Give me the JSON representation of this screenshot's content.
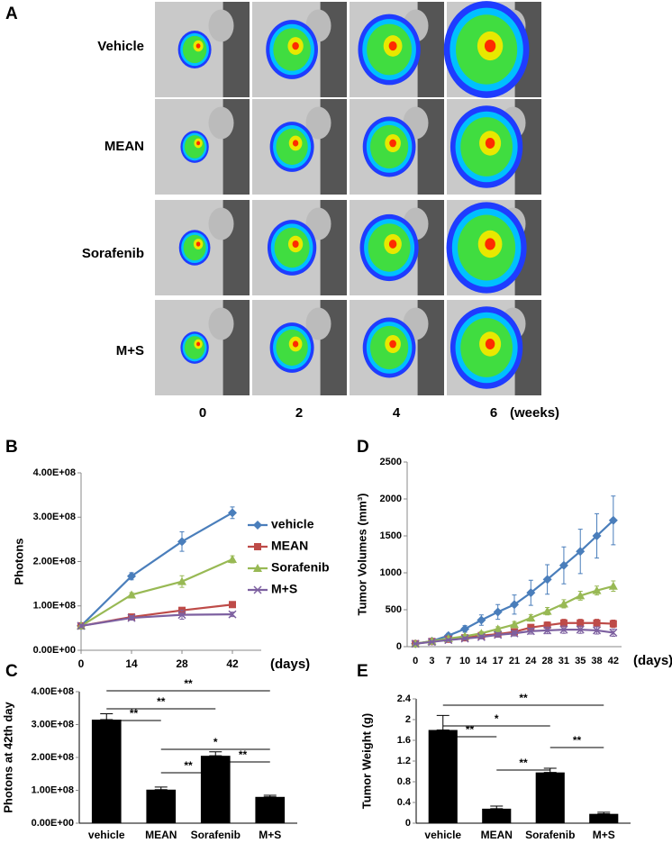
{
  "panel_a": {
    "label": "A",
    "rows": [
      "Vehicle",
      "MEAN",
      "Sorafenib",
      "M+S"
    ],
    "columns": [
      "0",
      "2",
      "4",
      "6"
    ],
    "unit": "(weeks)"
  },
  "chart_data": [
    {
      "type": "line",
      "panel": "B",
      "ylabel": "Photons",
      "xlabel": "(days)",
      "x": [
        0,
        14,
        28,
        42
      ],
      "xlim": [
        0,
        50
      ],
      "xticks": [
        0,
        14,
        28,
        42
      ],
      "ylim": [
        0,
        400000000
      ],
      "yticks": [
        {
          "value": 0,
          "label": "0.00E+00"
        },
        {
          "value": 100000000,
          "label": "1.00E+08"
        },
        {
          "value": 200000000,
          "label": "2.00E+08"
        },
        {
          "value": 300000000,
          "label": "3.00E+08"
        },
        {
          "value": 400000000,
          "label": "4.00E+08"
        }
      ],
      "legend": "right",
      "series": [
        {
          "name": "vehicle",
          "color": "#4a7ebb",
          "marker": "diamond",
          "values": [
            55000000,
            167000000,
            245000000,
            310000000
          ],
          "errors": [
            4000000,
            8000000,
            22000000,
            13000000
          ]
        },
        {
          "name": "MEAN",
          "color": "#be4b48",
          "marker": "square",
          "values": [
            55000000,
            75000000,
            90000000,
            103000000
          ],
          "errors": [
            4000000,
            5000000,
            5000000,
            5000000
          ]
        },
        {
          "name": "Sorafenib",
          "color": "#98b954",
          "marker": "triangle",
          "values": [
            55000000,
            125000000,
            155000000,
            205000000
          ],
          "errors": [
            4000000,
            5000000,
            13000000,
            8000000
          ]
        },
        {
          "name": "M+S",
          "color": "#7d60a0",
          "marker": "x",
          "values": [
            55000000,
            73000000,
            80000000,
            81000000
          ],
          "errors": [
            4000000,
            5000000,
            10000000,
            5000000
          ]
        }
      ]
    },
    {
      "type": "line",
      "panel": "D",
      "ylabel": "Tumor Volumes (mm³)",
      "xlabel": "(days)",
      "categories": [
        "0",
        "3",
        "7",
        "10",
        "14",
        "17",
        "21",
        "24",
        "28",
        "31",
        "35",
        "38",
        "42"
      ],
      "ylim": [
        0,
        2500
      ],
      "yticks": [
        0,
        500,
        1000,
        1500,
        2000,
        2500
      ],
      "series": [
        {
          "name": "vehicle",
          "color": "#4a7ebb",
          "marker": "diamond",
          "values": [
            40,
            75,
            150,
            240,
            360,
            470,
            570,
            730,
            910,
            1100,
            1290,
            1500,
            1710
          ],
          "errors": [
            10,
            15,
            30,
            45,
            70,
            100,
            130,
            170,
            200,
            250,
            300,
            300,
            330
          ]
        },
        {
          "name": "MEAN",
          "color": "#be4b48",
          "marker": "square",
          "values": [
            40,
            70,
            100,
            120,
            150,
            170,
            200,
            260,
            290,
            320,
            320,
            320,
            310
          ],
          "errors": [
            5,
            10,
            15,
            20,
            25,
            30,
            35,
            40,
            45,
            50,
            50,
            50,
            50
          ]
        },
        {
          "name": "Sorafenib",
          "color": "#98b954",
          "marker": "triangle",
          "values": [
            40,
            75,
            110,
            140,
            180,
            240,
            300,
            390,
            480,
            580,
            690,
            760,
            820
          ],
          "errors": [
            5,
            10,
            15,
            20,
            25,
            30,
            40,
            45,
            50,
            55,
            60,
            60,
            70
          ]
        },
        {
          "name": "M+S",
          "color": "#7d60a0",
          "marker": "x",
          "values": [
            40,
            65,
            90,
            110,
            130,
            160,
            180,
            210,
            220,
            230,
            230,
            220,
            190
          ],
          "errors": [
            5,
            10,
            15,
            20,
            25,
            30,
            35,
            40,
            45,
            50,
            50,
            50,
            50
          ]
        }
      ]
    },
    {
      "type": "bar",
      "panel": "C",
      "ylabel": "Photons at 42th day",
      "color": "#000000",
      "categories": [
        "vehicle",
        "MEAN",
        "Sorafenib",
        "M+S"
      ],
      "values": [
        315000000,
        102000000,
        205000000,
        80000000
      ],
      "errors": [
        18000000,
        8000000,
        12000000,
        5000000
      ],
      "ylim": [
        0,
        400000000
      ],
      "yticks": [
        {
          "value": 0,
          "label": "0.00E+00"
        },
        {
          "value": 100000000,
          "label": "1.00E+08"
        },
        {
          "value": 200000000,
          "label": "2.00E+08"
        },
        {
          "value": 300000000,
          "label": "3.00E+08"
        },
        {
          "value": 400000000,
          "label": "4.00E+08"
        }
      ],
      "annotations": [
        {
          "pair": [
            "vehicle",
            "MEAN"
          ],
          "label": "**"
        },
        {
          "pair": [
            "vehicle",
            "Sorafenib"
          ],
          "label": "**"
        },
        {
          "pair": [
            "vehicle",
            "M+S"
          ],
          "label": "**"
        },
        {
          "pair": [
            "MEAN",
            "M+S"
          ],
          "label": "*"
        },
        {
          "pair": [
            "Sorafenib",
            "M+S"
          ],
          "label": "**"
        },
        {
          "pair": [
            "MEAN",
            "Sorafenib"
          ],
          "label": "**"
        }
      ]
    },
    {
      "type": "bar",
      "panel": "E",
      "ylabel": "Tumor Weight (g)",
      "color": "#000000",
      "categories": [
        "vehicle",
        "MEAN",
        "Sorafenib",
        "M+S"
      ],
      "values": [
        1.8,
        0.28,
        0.98,
        0.18
      ],
      "errors": [
        0.28,
        0.05,
        0.08,
        0.03
      ],
      "ylim": [
        0,
        2.4
      ],
      "yticks": [
        0,
        0.4,
        0.8,
        1.2,
        1.6,
        2,
        2.4
      ],
      "annotations": [
        {
          "pair": [
            "vehicle",
            "MEAN"
          ],
          "label": "**"
        },
        {
          "pair": [
            "vehicle",
            "Sorafenib"
          ],
          "label": "*"
        },
        {
          "pair": [
            "vehicle",
            "M+S"
          ],
          "label": "**"
        },
        {
          "pair": [
            "MEAN",
            "Sorafenib"
          ],
          "label": "**"
        },
        {
          "pair": [
            "Sorafenib",
            "M+S"
          ],
          "label": "**"
        }
      ]
    }
  ]
}
